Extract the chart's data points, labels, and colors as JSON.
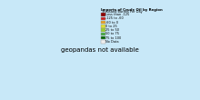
{
  "title_line1": "Imports of Crude Oil by Region",
  "title_line2": "Thousand Barrels Per Day",
  "legend_entries": [
    {
      "label": "Less than -125",
      "color": "#8B0000"
    },
    {
      "label": "-125 to -60",
      "color": "#CC2222"
    },
    {
      "label": "-60 to 0",
      "color": "#E8A020"
    },
    {
      "label": "0 to 25",
      "color": "#DDDD33"
    },
    {
      "label": "25 to 50",
      "color": "#99CC33"
    },
    {
      "label": "50 to 75",
      "color": "#44AA44"
    },
    {
      "label": "75 to 100",
      "color": "#006600"
    },
    {
      "label": "No Data",
      "color": "#EEEEEE"
    }
  ],
  "ocean_color": "#C8E8F8",
  "land_no_data_color": "#EEEEEE",
  "country_edge_color": "#BBBBBB",
  "country_edge_width": 0.15,
  "map_extent": [
    -180,
    180,
    -60,
    85
  ],
  "countries": {
    "Russia": "#006600",
    "China": "#8B0000",
    "India": "#CC2222",
    "Indonesia": "#CC2222",
    "Mexico": "#CC2222",
    "Iraq": "#CC2222",
    "Libya": "#CC2222",
    "Venezuela": "#8B0000",
    "Nigeria": "#99CC33",
    "Angola": "#44AA44",
    "Gabon": "#44AA44",
    "Norway": "#E8A020",
    "Saudi Arabia": "#E8A020",
    "Canada": "#DDDD33",
    "Japan": "#DDDD33",
    "South Korea": "#DDDD33",
    "Germany": "#DDDD33",
    "France": "#DDDD33",
    "Italy": "#DDDD33",
    "Spain": "#DDDD33",
    "Netherlands": "#DDDD33",
    "United Kingdom": "#DDDD33",
    "Sweden": "#DDDD33",
    "Finland": "#DDDD33",
    "Poland": "#DDDD33",
    "Ukraine": "#DDDD33",
    "Iran": "#DDDD33",
    "Kuwait": "#DDDD33",
    "United Arab Emirates": "#DDDD33",
    "Qatar": "#DDDD33",
    "Algeria": "#DDDD33",
    "South Africa": "#DDDD33",
    "Brazil": "#DDDD33",
    "Colombia": "#DDDD33",
    "Argentina": "#DDDD33",
    "Australia": "#DDDD33",
    "Malaysia": "#DDDD33",
    "Thailand": "#DDDD33",
    "Vietnam": "#DDDD33",
    "Philippines": "#DDDD33",
    "Turkey": "#DDDD33",
    "Kazakhstan": "#DDDD33",
    "Pakistan": "#DDDD33",
    "Bangladesh": "#DDDD33",
    "Egypt": "#DDDD33",
    "Morocco": "#DDDD33",
    "Tanzania": "#DDDD33",
    "Ethiopia": "#DDDD33",
    "Kenya": "#DDDD33",
    "Ghana": "#DDDD33",
    "Cameroon": "#DDDD33",
    "Sudan": "#DDDD33",
    "Tunisia": "#DDDD33",
    "Greece": "#DDDD33",
    "Portugal": "#DDDD33",
    "Romania": "#DDDD33",
    "Czech Republic": "#DDDD33",
    "Austria": "#DDDD33",
    "Hungary": "#DDDD33",
    "Belarus": "#DDDD33",
    "Myanmar": "#DDDD33",
    "Mongolia": "#DDDD33",
    "Afghanistan": "#DDDD33",
    "Uzbekistan": "#DDDD33",
    "Turkmenistan": "#DDDD33",
    "Azerbaijan": "#DDDD33",
    "Jordan": "#DDDD33",
    "Syria": "#DDDD33",
    "Yemen": "#DDDD33",
    "Oman": "#DDDD33",
    "Sri Lanka": "#DDDD33",
    "Nepal": "#DDDD33",
    "Papua New Guinea": "#DDDD33",
    "New Zealand": "#DDDD33",
    "Guatemala": "#DDDD33",
    "Ecuador": "#DDDD33",
    "Peru": "#DDDD33",
    "Bolivia": "#DDDD33",
    "Chile": "#DDDD33",
    "Zambia": "#DDDD33",
    "Zimbabwe": "#DDDD33",
    "Namibia": "#DDDD33",
    "Democratic Republic of the Congo": "#DDDD33",
    "Republic of Congo": "#DDDD33",
    "Central African Republic": "#DDDD33",
    "South Sudan": "#DDDD33",
    "Uganda": "#DDDD33",
    "Denmark": "#DDDD33",
    "Belgium": "#DDDD33",
    "Ireland": "#DDDD33",
    "Iceland": "#DDDD33",
    "Bulgaria": "#DDDD33",
    "Kyrgyzstan": "#DDDD33",
    "Tajikistan": "#DDDD33",
    "North Korea": "#DDDD33",
    "Laos": "#DDDD33",
    "Cambodia": "#DDDD33",
    "Madagascar": "#DDDD33",
    "Mozambique": "#DDDD33"
  }
}
